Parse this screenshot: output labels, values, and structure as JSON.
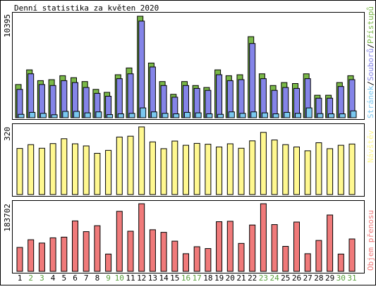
{
  "colors": {
    "background": "#ffffff",
    "border": "#000000",
    "hits": "#7ab848",
    "files": "#8484e8",
    "pages": "#7ac8f0",
    "visits": "#fff890",
    "volume": "#f07a7a",
    "weekday_label": "#000000",
    "weekend_label": "#58a03c",
    "axis_text": "#000000"
  },
  "chart_data": [
    {
      "type": "bar",
      "title": "Denní statistika za květen 2020",
      "ymax_label": "10395",
      "ylim": [
        0,
        10395
      ],
      "legend": {
        "parts": [
          "Stránek",
          "Souborů",
          "Přístupů"
        ],
        "separator": "/",
        "placement": "right-vertical"
      },
      "categories": [
        "1",
        "2",
        "3",
        "4",
        "5",
        "6",
        "7",
        "8",
        "9",
        "10",
        "11",
        "12",
        "13",
        "14",
        "15",
        "16",
        "17",
        "18",
        "19",
        "20",
        "21",
        "22",
        "23",
        "24",
        "25",
        "26",
        "27",
        "28",
        "29",
        "30",
        "31"
      ],
      "weekend": [
        2,
        3,
        9,
        10,
        16,
        17,
        23,
        24,
        30,
        31
      ],
      "series": [
        {
          "name": "Přístupů",
          "values": [
            3400,
            4900,
            3800,
            3900,
            4300,
            4100,
            3700,
            2900,
            2600,
            4400,
            5100,
            10395,
            5600,
            3700,
            2400,
            3700,
            3300,
            3100,
            4900,
            4300,
            4400,
            8300,
            4500,
            3300,
            3600,
            3500,
            4500,
            2300,
            2300,
            3600,
            4300
          ]
        },
        {
          "name": "Souborů",
          "values": [
            2900,
            4500,
            3400,
            3300,
            3800,
            3600,
            3100,
            2500,
            2200,
            4000,
            4500,
            9900,
            5200,
            3300,
            2100,
            3300,
            3000,
            2800,
            4400,
            3800,
            3900,
            7600,
            4000,
            2800,
            3100,
            3000,
            4000,
            2000,
            2000,
            3200,
            3900
          ]
        },
        {
          "name": "Stránek",
          "values": [
            350,
            550,
            450,
            300,
            650,
            650,
            500,
            600,
            320,
            400,
            450,
            1000,
            600,
            450,
            400,
            550,
            500,
            400,
            350,
            600,
            450,
            600,
            500,
            400,
            550,
            450,
            1000,
            420,
            400,
            400,
            700
          ]
        }
      ]
    },
    {
      "type": "bar",
      "ymax_label": "320",
      "ylim": [
        0,
        320
      ],
      "legend": {
        "parts": [
          "Návštěv"
        ],
        "placement": "right-vertical"
      },
      "categories": [
        "1",
        "2",
        "3",
        "4",
        "5",
        "6",
        "7",
        "8",
        "9",
        "10",
        "11",
        "12",
        "13",
        "14",
        "15",
        "16",
        "17",
        "18",
        "19",
        "20",
        "21",
        "22",
        "23",
        "24",
        "25",
        "26",
        "27",
        "28",
        "29",
        "30",
        "31"
      ],
      "series": [
        {
          "name": "Návštěv",
          "values": [
            218,
            236,
            219,
            241,
            264,
            240,
            230,
            195,
            209,
            272,
            276,
            320,
            249,
            217,
            253,
            233,
            242,
            238,
            225,
            240,
            219,
            254,
            294,
            258,
            236,
            225,
            207,
            245,
            217,
            233,
            239
          ]
        }
      ]
    },
    {
      "type": "bar",
      "ymax_label": "183702",
      "ylim": [
        0,
        183702
      ],
      "legend": {
        "parts": [
          "Objem přenosu"
        ],
        "placement": "right-vertical"
      },
      "categories": [
        "1",
        "2",
        "3",
        "4",
        "5",
        "6",
        "7",
        "8",
        "9",
        "10",
        "11",
        "12",
        "13",
        "14",
        "15",
        "16",
        "17",
        "18",
        "19",
        "20",
        "21",
        "22",
        "23",
        "24",
        "25",
        "26",
        "27",
        "28",
        "29",
        "30",
        "31"
      ],
      "series": [
        {
          "name": "Objem přenosu",
          "values": [
            65000,
            86000,
            77000,
            91000,
            93000,
            137000,
            108000,
            124000,
            47000,
            163000,
            109000,
            183702,
            113000,
            106000,
            82000,
            48000,
            67000,
            62000,
            135000,
            136000,
            76000,
            126000,
            183702,
            127000,
            68000,
            134000,
            48000,
            84000,
            153000,
            47000,
            88000
          ]
        }
      ]
    }
  ]
}
